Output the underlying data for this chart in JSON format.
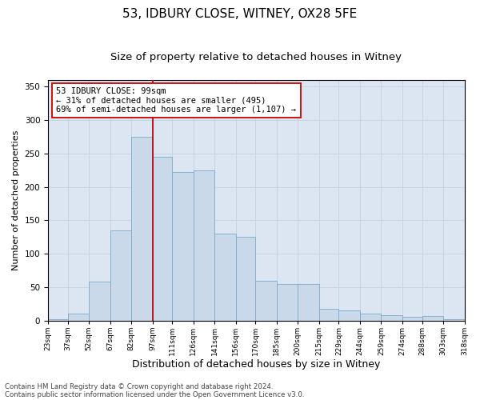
{
  "title1": "53, IDBURY CLOSE, WITNEY, OX28 5FE",
  "title2": "Size of property relative to detached houses in Witney",
  "xlabel": "Distribution of detached houses by size in Witney",
  "ylabel": "Number of detached properties",
  "footnote1": "Contains HM Land Registry data © Crown copyright and database right 2024.",
  "footnote2": "Contains public sector information licensed under the Open Government Licence v3.0.",
  "annotation_line1": "53 IDBURY CLOSE: 99sqm",
  "annotation_line2": "← 31% of detached houses are smaller (495)",
  "annotation_line3": "69% of semi-detached houses are larger (1,107) →",
  "bar_left_edges": [
    23,
    37,
    52,
    67,
    82,
    97,
    111,
    126,
    141,
    156,
    170,
    185,
    200,
    215,
    229,
    244,
    259,
    274,
    288,
    303
  ],
  "bar_widths": [
    14,
    15,
    15,
    15,
    15,
    14,
    15,
    15,
    15,
    14,
    15,
    15,
    15,
    14,
    15,
    15,
    15,
    14,
    15,
    15
  ],
  "bar_heights": [
    2,
    10,
    58,
    135,
    275,
    245,
    222,
    225,
    130,
    125,
    60,
    55,
    55,
    18,
    15,
    10,
    8,
    5,
    7,
    2
  ],
  "tick_labels": [
    "23sqm",
    "37sqm",
    "52sqm",
    "67sqm",
    "82sqm",
    "97sqm",
    "111sqm",
    "126sqm",
    "141sqm",
    "156sqm",
    "170sqm",
    "185sqm",
    "200sqm",
    "215sqm",
    "229sqm",
    "244sqm",
    "259sqm",
    "274sqm",
    "288sqm",
    "303sqm",
    "318sqm"
  ],
  "bar_color": "#c9d9ea",
  "bar_edge_color": "#7baac8",
  "grid_color": "#c8d4e4",
  "background_color": "#dce6f2",
  "vline_color": "#cc0000",
  "vline_x": 97,
  "ylim": [
    0,
    360
  ],
  "yticks": [
    0,
    50,
    100,
    150,
    200,
    250,
    300,
    350
  ],
  "title1_fontsize": 11,
  "title2_fontsize": 9.5,
  "xlabel_fontsize": 9,
  "ylabel_fontsize": 8,
  "tick_fontsize": 6.5,
  "annotation_fontsize": 7.5,
  "footnote_fontsize": 6.2
}
